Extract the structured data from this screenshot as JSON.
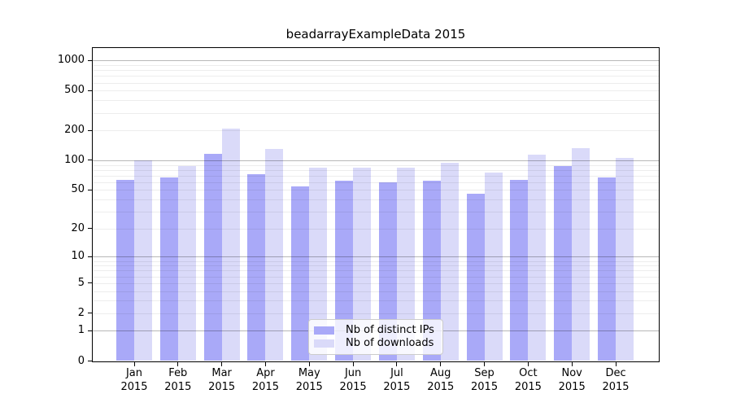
{
  "title": "beadarrayExampleData 2015",
  "chart_data": {
    "type": "bar",
    "title": "beadarrayExampleData 2015",
    "y_scale": "log10(1+x)",
    "categories": [
      "Jan",
      "Feb",
      "Mar",
      "Apr",
      "May",
      "Jun",
      "Jul",
      "Aug",
      "Sep",
      "Oct",
      "Nov",
      "Dec"
    ],
    "category_year": "2015",
    "series": [
      {
        "name": "Nb of distinct IPs",
        "key": "ips",
        "color": "#a9a9f8",
        "values": [
          64,
          67,
          117,
          72,
          54,
          62,
          60,
          62,
          46,
          64,
          88,
          67
        ]
      },
      {
        "name": "Nb of downloads",
        "key": "downloads",
        "color": "#dadaf9",
        "values": [
          100,
          88,
          208,
          129,
          84,
          84,
          84,
          94,
          75,
          114,
          132,
          105
        ]
      }
    ],
    "yticks": [
      0,
      1,
      2,
      5,
      10,
      20,
      50,
      100,
      200,
      500,
      1000
    ],
    "ylim": [
      0,
      1336
    ],
    "grid": "horizontal major+minor, drawn over bars",
    "legend_position": "inside bottom-center"
  }
}
